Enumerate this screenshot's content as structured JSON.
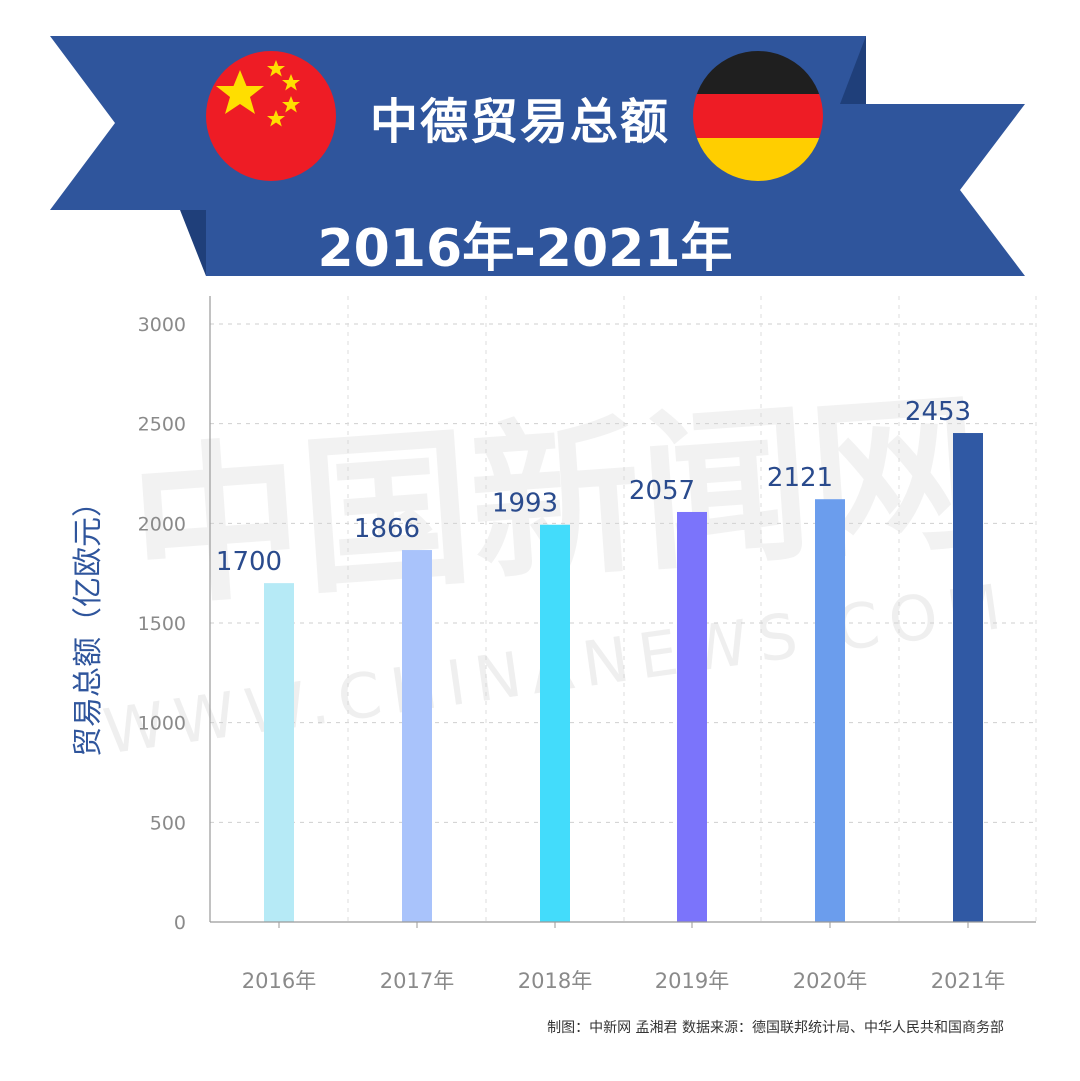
{
  "banner": {
    "title": "中德贸易总额",
    "subtitle": "2016年-2021年"
  },
  "flags": {
    "china": {
      "red": "#EE1C25",
      "star": "#FFDE00"
    },
    "germany": {
      "black": "#1f1f1f",
      "red": "#EE1C25",
      "gold": "#FFCE00"
    }
  },
  "colors": {
    "banner": "#2f559c",
    "axis_label": "#2f559c",
    "value_label": "#2a4b8d"
  },
  "chart_data": {
    "type": "bar",
    "title": "中德贸易总额",
    "ylabel": "贸易总额（亿欧元）",
    "xlabel": "",
    "categories": [
      "2016年",
      "2017年",
      "2018年",
      "2019年",
      "2020年",
      "2021年"
    ],
    "values": [
      1700,
      1866,
      1993,
      2057,
      2121,
      2453
    ],
    "colors": [
      "#b6eaf6",
      "#a9c3fb",
      "#43dcfb",
      "#7b74fb",
      "#6b9ded",
      "#3059a4"
    ],
    "ylim": [
      0,
      3000
    ],
    "yticks": [
      0,
      500,
      1000,
      1500,
      2000,
      2500,
      3000
    ],
    "grid": true,
    "data_labels": [
      "1700",
      "1866",
      "1993",
      "2057",
      "2121",
      "2453"
    ]
  },
  "watermark": {
    "main": "中国新闻网",
    "sub": "WWW.CHINANEWS.COM"
  },
  "source_note": "制图：中新网 孟湘君 数据来源：德国联邦统计局、中华人民共和国商务部"
}
